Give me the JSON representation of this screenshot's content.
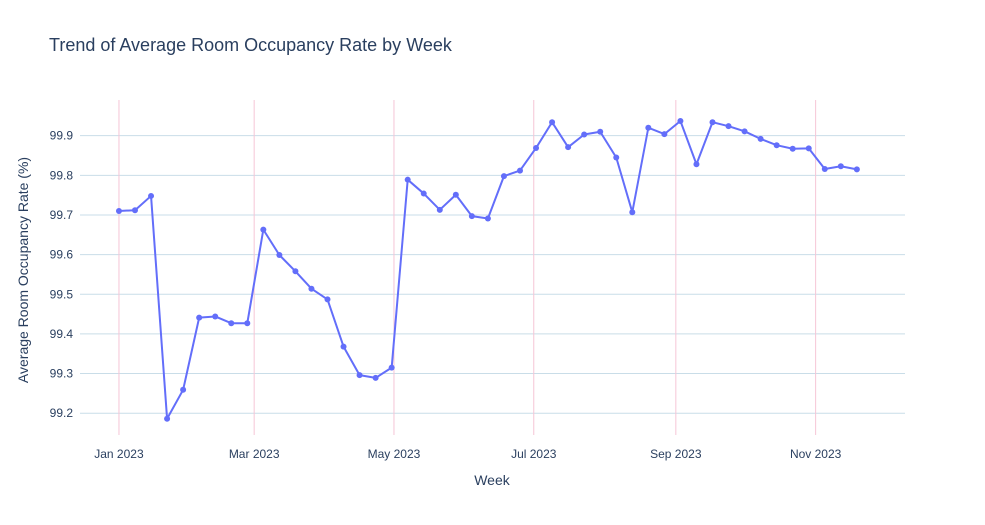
{
  "chart_data": {
    "type": "line",
    "title": "Trend of Average Room Occupancy Rate by Week",
    "xlabel": "Week",
    "ylabel": "Average Room Occupancy Rate (%)",
    "x_tick_labels": [
      "Jan 2023",
      "Mar 2023",
      "May 2023",
      "Jul 2023",
      "Sep 2023",
      "Nov 2023"
    ],
    "x_ticks": [
      "2023-01-01",
      "2023-03-01",
      "2023-05-01",
      "2023-07-01",
      "2023-09-01",
      "2023-11-01"
    ],
    "y_ticks": [
      99.2,
      99.3,
      99.4,
      99.5,
      99.6,
      99.7,
      99.8,
      99.9
    ],
    "ylim": [
      99.145,
      99.99
    ],
    "xlim": [
      "2022-12-15",
      "2023-12-10"
    ],
    "grid": true,
    "colors": {
      "line": "#636efa",
      "ygrid": "#c9dde8",
      "xgrid": "#f6c6d6",
      "text": "#2a3f5f"
    },
    "series": [
      {
        "x": [
          "2023-01-01",
          "2023-01-08",
          "2023-01-15",
          "2023-01-22",
          "2023-01-29",
          "2023-02-05",
          "2023-02-12",
          "2023-02-19",
          "2023-02-26",
          "2023-03-05",
          "2023-03-12",
          "2023-03-19",
          "2023-03-26",
          "2023-04-02",
          "2023-04-09",
          "2023-04-16",
          "2023-04-23",
          "2023-04-30",
          "2023-05-07",
          "2023-05-14",
          "2023-05-21",
          "2023-05-28",
          "2023-06-04",
          "2023-06-11",
          "2023-06-18",
          "2023-06-25",
          "2023-07-02",
          "2023-07-09",
          "2023-07-16",
          "2023-07-23",
          "2023-07-30",
          "2023-08-06",
          "2023-08-13",
          "2023-08-20",
          "2023-08-27",
          "2023-09-03",
          "2023-09-10",
          "2023-09-17",
          "2023-09-24",
          "2023-10-01",
          "2023-10-08",
          "2023-10-15",
          "2023-10-22",
          "2023-10-29",
          "2023-11-05",
          "2023-11-12",
          "2023-11-19"
        ],
        "values": [
          99.71,
          99.712,
          99.748,
          99.186,
          99.259,
          99.441,
          99.444,
          99.427,
          99.427,
          99.663,
          99.599,
          99.558,
          99.514,
          99.487,
          99.368,
          99.296,
          99.289,
          99.315,
          99.789,
          99.754,
          99.713,
          99.751,
          99.697,
          99.691,
          99.798,
          99.812,
          99.869,
          99.934,
          99.871,
          99.903,
          99.91,
          99.845,
          99.707,
          99.92,
          99.904,
          99.937,
          99.828,
          99.934,
          99.924,
          99.911,
          99.892,
          99.876,
          99.867,
          99.868,
          99.816,
          99.823,
          99.815
        ]
      }
    ]
  }
}
